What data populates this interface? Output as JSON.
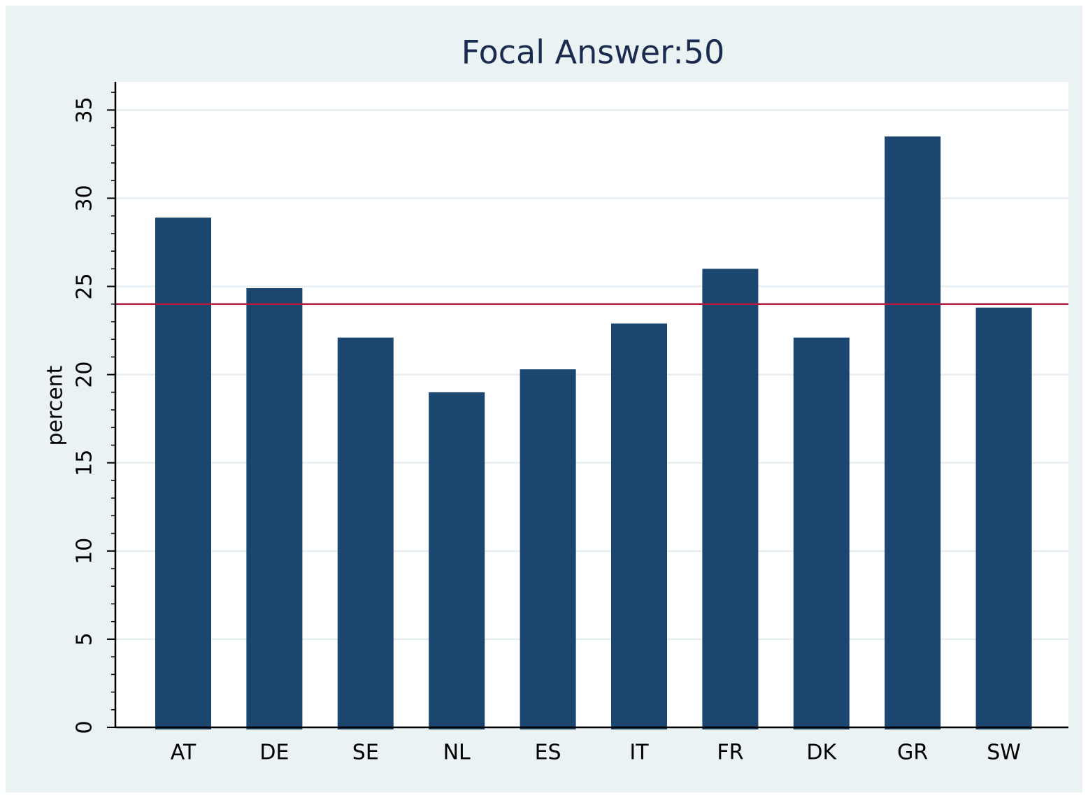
{
  "chart_data": {
    "type": "bar",
    "title": "Focal Answer:50",
    "y_label": "percent",
    "categories": [
      "AT",
      "DE",
      "SE",
      "NL",
      "ES",
      "IT",
      "FR",
      "DK",
      "GR",
      "SW"
    ],
    "values": [
      28.9,
      24.9,
      22.1,
      19.0,
      20.3,
      22.9,
      26.0,
      22.1,
      33.5,
      23.8
    ],
    "color": "#1b466f",
    "reference_line": 24.0,
    "reference_color": "#b11d3f",
    "ylim": [
      0,
      36.6
    ],
    "yticks": [
      0,
      5,
      10,
      15,
      20,
      25,
      30,
      35
    ],
    "y_minor_tick_step": 1,
    "grid": true
  }
}
